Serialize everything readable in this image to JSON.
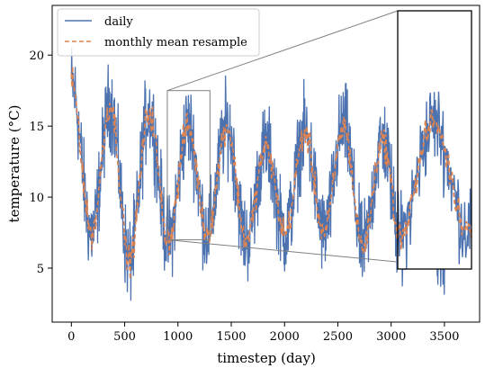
{
  "chart_data": {
    "type": "line",
    "xlabel": "timestep (day)",
    "ylabel": "temperature (°C)",
    "xlim": [
      -180,
      3830
    ],
    "ylim": [
      1.2,
      23.5
    ],
    "xticks": [
      0,
      500,
      1000,
      1500,
      2000,
      2500,
      3000,
      3500
    ],
    "yticks": [
      5,
      10,
      15,
      20
    ],
    "grid": false,
    "legend_position": "top-left",
    "colors": {
      "daily": "#4c72b0",
      "monthly": "#dd8452"
    },
    "series": [
      {
        "name": "daily",
        "style": "solid",
        "x_start": 0,
        "x_end": 3649,
        "seasonal_anchors_x": [
          0,
          190,
          365,
          545,
          730,
          910,
          1095,
          1275,
          1460,
          1640,
          1825,
          2005,
          2190,
          2370,
          2555,
          2735,
          2920,
          3100,
          3285,
          3465,
          3649
        ],
        "seasonal_anchors_y": [
          18.0,
          7.5,
          16.5,
          5.5,
          16.0,
          7.0,
          15.0,
          7.5,
          15.0,
          7.0,
          13.5,
          7.5,
          14.5,
          7.5,
          15.0,
          6.5,
          14.0,
          6.5,
          17.0,
          6.0,
          15.0
        ],
        "noise_amplitude": 2.3
      },
      {
        "name": "monthly mean resample",
        "style": "dashed",
        "x_start": 0,
        "x_end": 3649,
        "seasonal_anchors_x": [
          0,
          190,
          365,
          545,
          730,
          910,
          1095,
          1275,
          1460,
          1640,
          1825,
          2005,
          2190,
          2370,
          2555,
          2735,
          2920,
          3100,
          3285,
          3465,
          3649
        ],
        "seasonal_anchors_y": [
          18.0,
          7.5,
          16.5,
          5.5,
          16.0,
          7.0,
          15.0,
          7.5,
          15.0,
          7.0,
          13.5,
          7.5,
          14.5,
          7.5,
          15.0,
          6.5,
          14.0,
          6.5,
          17.0,
          6.0,
          15.0
        ],
        "noise_amplitude": 0.8
      }
    ],
    "inset": {
      "source_xlim": [
        900,
        1300
      ],
      "source_ylim": [
        7.0,
        17.5
      ],
      "inset_xlim": [
        900,
        1300
      ],
      "inset_ylim": [
        4.5,
        23.0
      ]
    }
  }
}
